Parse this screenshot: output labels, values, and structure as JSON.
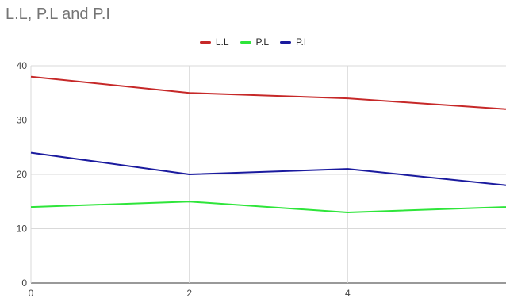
{
  "chart_data": {
    "type": "line",
    "title": "L.L, P.L and P.I",
    "xlabel": "",
    "ylabel": "",
    "x": [
      0,
      2,
      4,
      6
    ],
    "xlim": [
      0,
      6
    ],
    "ylim": [
      0,
      40
    ],
    "x_ticks": [
      0,
      2,
      4
    ],
    "y_ticks": [
      0,
      10,
      20,
      30,
      40
    ],
    "grid": true,
    "legend_position": "top",
    "series": [
      {
        "name": "L.L",
        "color": "#c62828",
        "values": [
          38,
          35,
          34,
          32
        ]
      },
      {
        "name": "P.L",
        "color": "#2ee53a",
        "values": [
          14,
          15,
          13,
          14
        ]
      },
      {
        "name": "P.I",
        "color": "#1a1a9e",
        "values": [
          24,
          20,
          21,
          18
        ]
      }
    ]
  }
}
